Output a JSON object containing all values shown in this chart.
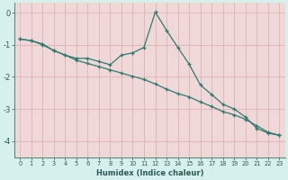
{
  "x": [
    0,
    1,
    2,
    3,
    4,
    5,
    6,
    7,
    8,
    9,
    10,
    11,
    12,
    13,
    14,
    15,
    16,
    17,
    18,
    19,
    20,
    21,
    22,
    23
  ],
  "line1": [
    -0.82,
    -0.87,
    -0.97,
    -1.18,
    -1.32,
    -1.42,
    -1.42,
    -1.52,
    -1.62,
    -1.32,
    -1.25,
    -1.08,
    0.02,
    -0.55,
    -1.08,
    -1.6,
    -2.25,
    -2.55,
    -2.85,
    -3.0,
    -3.25,
    -3.6,
    -3.75,
    -3.82
  ],
  "line2": [
    -0.82,
    -0.87,
    -1.0,
    -1.18,
    -1.32,
    -1.48,
    -1.58,
    -1.68,
    -1.78,
    -1.88,
    -1.98,
    -2.08,
    -2.22,
    -2.38,
    -2.52,
    -2.62,
    -2.78,
    -2.92,
    -3.08,
    -3.18,
    -3.32,
    -3.52,
    -3.72,
    -3.82
  ],
  "line_color": "#2d7a6e",
  "bg_outer": "#d6f0ee",
  "bg_plot": "#f0d8d8",
  "grid_color": "#e0b8b8",
  "xlabel": "Humidex (Indice chaleur)",
  "xlabel_color": "#2d5a52",
  "ylim": [
    -4.5,
    0.3
  ],
  "xlim": [
    -0.5,
    23.5
  ],
  "yticks": [
    0,
    -1,
    -2,
    -3,
    -4
  ],
  "tick_color": "#2d5a52",
  "spine_color": "#5a8a80"
}
